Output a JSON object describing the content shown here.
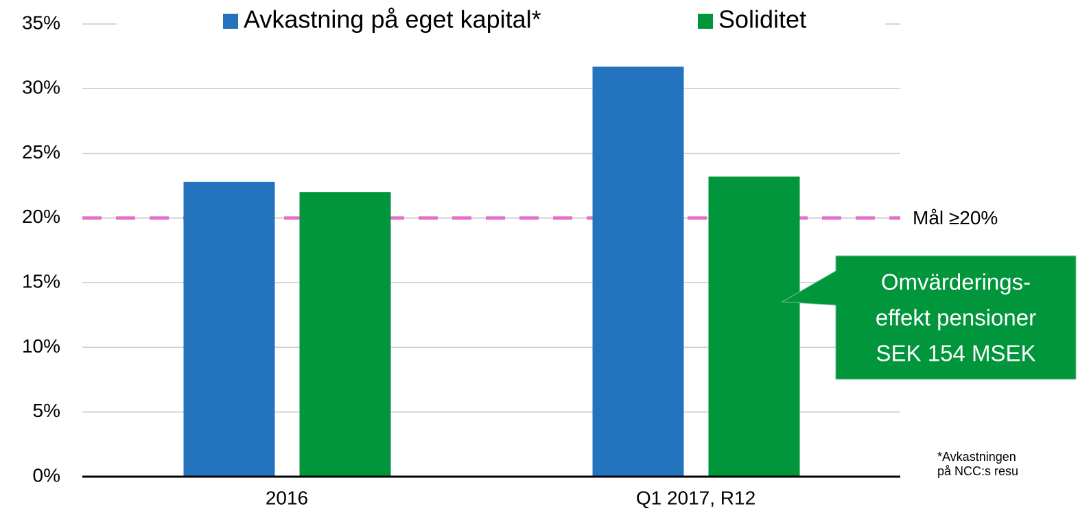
{
  "chart_data": {
    "type": "bar",
    "categories": [
      "2016",
      "Q1 2017, R12"
    ],
    "series": [
      {
        "name": "Avkastning på eget kapital*",
        "color": "#2473be",
        "values": [
          22.8,
          31.7
        ]
      },
      {
        "name": "Soliditet",
        "color": "#01963b",
        "values": [
          22.0,
          23.2
        ]
      }
    ],
    "ylim": [
      0,
      35
    ],
    "yticks": [
      {
        "value": 0,
        "label": "0%"
      },
      {
        "value": 5,
        "label": "5%"
      },
      {
        "value": 10,
        "label": "10%"
      },
      {
        "value": 15,
        "label": "15%"
      },
      {
        "value": 20,
        "label": "20%"
      },
      {
        "value": 25,
        "label": "25%"
      },
      {
        "value": 30,
        "label": "30%"
      },
      {
        "value": 35,
        "label": "35%"
      }
    ],
    "grid": true,
    "target": {
      "value": 20,
      "label": "Mål ≥20%",
      "color": "#e36fc8"
    },
    "callout": {
      "lines": [
        "Omvärderings-",
        "effekt pensioner",
        "SEK 154 MSEK"
      ],
      "color": "#01963b"
    },
    "footnote": [
      "*Avkastningen",
      "på NCC:s resu"
    ]
  }
}
